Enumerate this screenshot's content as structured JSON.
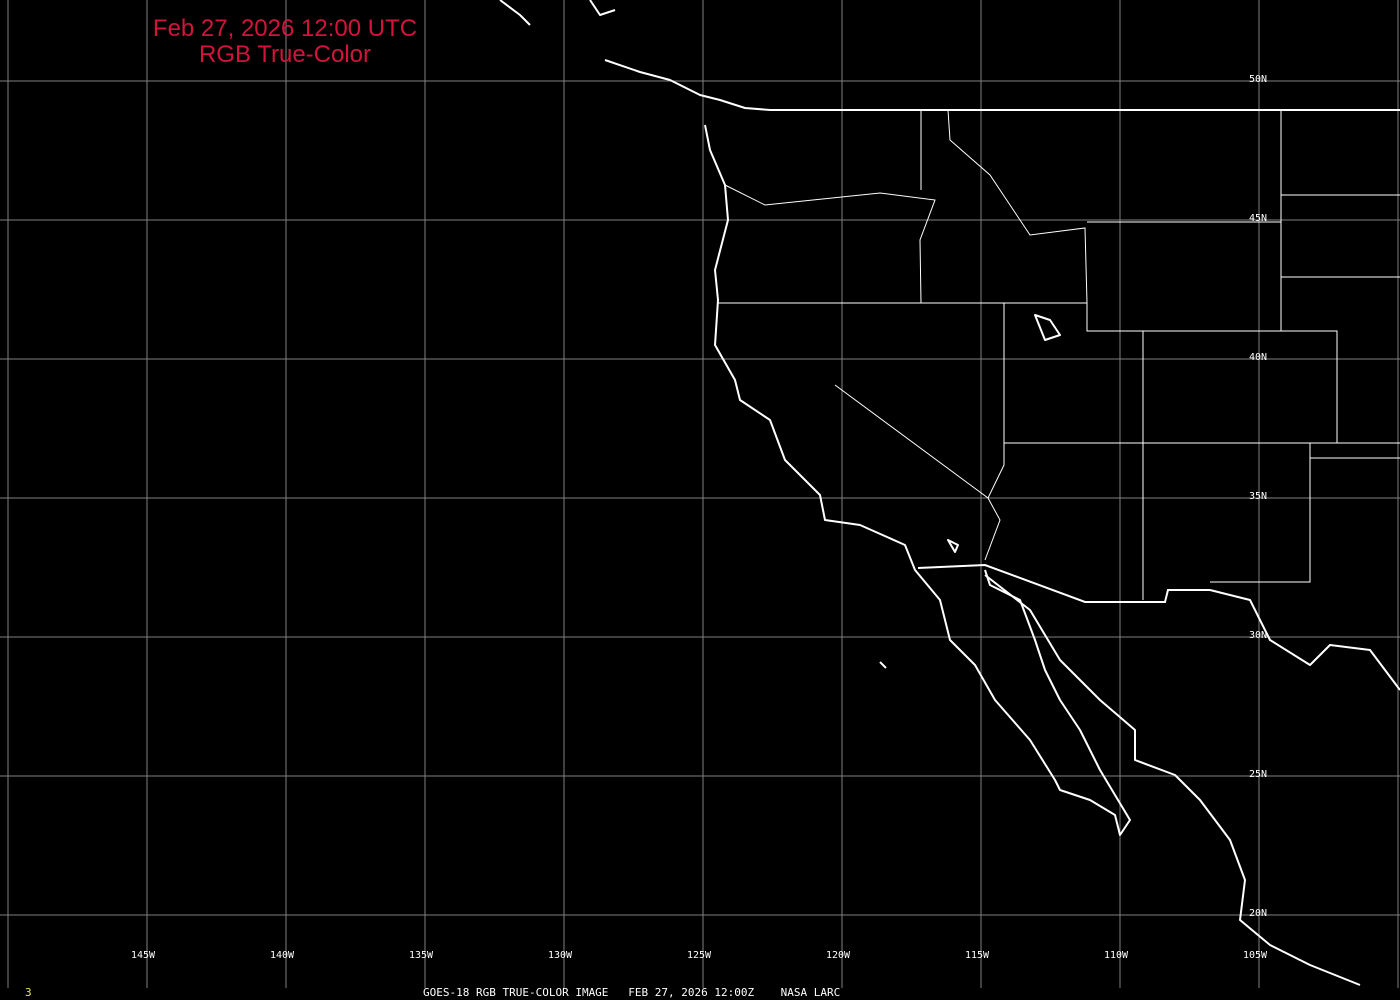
{
  "title": {
    "line1": "Feb 27, 2026 12:00 UTC",
    "line2": "RGB True-Color",
    "color": "#d2143c"
  },
  "lon_labels": [
    "145W",
    "140W",
    "135W",
    "130W",
    "125W",
    "120W",
    "115W",
    "110W",
    "105W"
  ],
  "lat_labels": [
    "50N",
    "45N",
    "40N",
    "35N",
    "30N",
    "25N",
    "20N"
  ],
  "footer": {
    "frame": "3",
    "caption": "GOES-18 RGB TRUE-COLOR IMAGE   FEB 27, 2026 12:00Z    NASA LARC",
    "frame_color": "#e6e650"
  },
  "map": {
    "grid_color": "#808080",
    "outline_color": "#ffffff",
    "background": "#000000"
  }
}
